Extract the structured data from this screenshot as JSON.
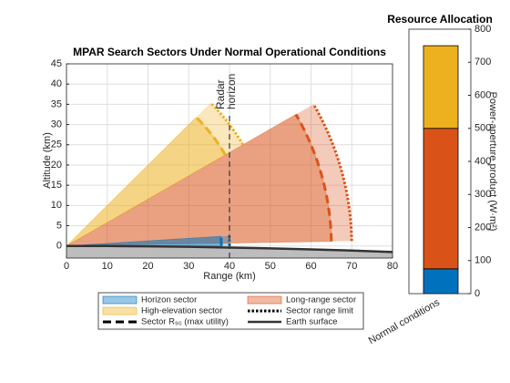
{
  "chart_data": [
    {
      "type": "sector",
      "title": "MPAR Search Sectors Under Normal Operational Conditions",
      "x_label": "Range (km)",
      "y_label": "Altitude (km)",
      "xlim": [
        0,
        80
      ],
      "ylim": [
        -3,
        45
      ],
      "xticks": [
        0,
        10,
        20,
        30,
        40,
        50,
        60,
        70,
        80
      ],
      "yticks": [
        0,
        5,
        10,
        15,
        20,
        25,
        30,
        35,
        40,
        45
      ],
      "grid": true,
      "sectors": [
        {
          "name": "Long-range sector",
          "color": "#D95319",
          "angles": [
            1,
            30
          ],
          "r90": 65,
          "limit": 70
        },
        {
          "name": "High-elevation sector",
          "color": "#EDB120",
          "angles": [
            30,
            45
          ],
          "r90": 45,
          "limit": 50
        },
        {
          "name": "Horizon sector",
          "color": "#0072BD",
          "angles": [
            0,
            3.6
          ],
          "r90": 38,
          "limit": 40
        }
      ],
      "earth_surface": {
        "name": "Earth surface",
        "x": [
          0,
          10,
          20,
          30,
          40,
          50,
          60,
          70,
          80
        ],
        "y": [
          0,
          -0.02,
          -0.1,
          -0.22,
          -0.4,
          -0.6,
          -0.85,
          -1.15,
          -1.5
        ]
      },
      "annotation": {
        "lines": [
          "Radar",
          "horizon"
        ],
        "x": 40
      },
      "range_limit_label": "Sector range limit",
      "r90_label": "Sector R₉₀ (max utility)"
    },
    {
      "type": "stacked-bar",
      "title": "Resource Allocation",
      "y_label": "Power-aperture product (W·m²)",
      "categories": [
        "Normal conditions"
      ],
      "ylim": [
        0,
        800
      ],
      "yticks": [
        0,
        100,
        200,
        300,
        400,
        500,
        600,
        700,
        800
      ],
      "series": [
        {
          "color": "#0072BD",
          "values": [
            75
          ]
        },
        {
          "color": "#D95319",
          "values": [
            425
          ]
        },
        {
          "color": "#EDB120",
          "values": [
            250
          ]
        }
      ]
    }
  ]
}
